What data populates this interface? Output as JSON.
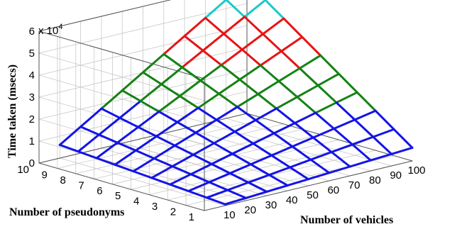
{
  "chart_data": {
    "type": "surface",
    "title": "",
    "xlabel": "Number of vehicles",
    "ylabel": "Number of pseudonyms",
    "zlabel": "Time taken (msecs)",
    "z_exponent_label": "x 10",
    "z_exponent_power": "4",
    "x": [
      10,
      20,
      30,
      40,
      50,
      60,
      70,
      80,
      90,
      100
    ],
    "y": [
      1,
      2,
      3,
      4,
      5,
      6,
      7,
      8,
      9,
      10
    ],
    "x_ticks": [
      "10",
      "20",
      "30",
      "40",
      "50",
      "60",
      "70",
      "80",
      "90",
      "100"
    ],
    "y_ticks": [
      "1",
      "2",
      "3",
      "4",
      "5",
      "6",
      "7",
      "8",
      "9",
      "10"
    ],
    "z_ticks": [
      "0",
      "1",
      "2",
      "3",
      "4",
      "5",
      "6"
    ],
    "xlim": [
      0,
      100
    ],
    "ylim": [
      1,
      10
    ],
    "zlim": [
      0,
      60000
    ],
    "z_function": "z = 60 * x * y (msecs)",
    "color_bands": [
      {
        "z_max": 20000,
        "color": "#1414e6"
      },
      {
        "z_max": 35000,
        "color": "#148214"
      },
      {
        "z_max": 50000,
        "color": "#e61414"
      },
      {
        "z_max": 60000,
        "color": "#1ec8c8"
      }
    ],
    "grid": true
  }
}
